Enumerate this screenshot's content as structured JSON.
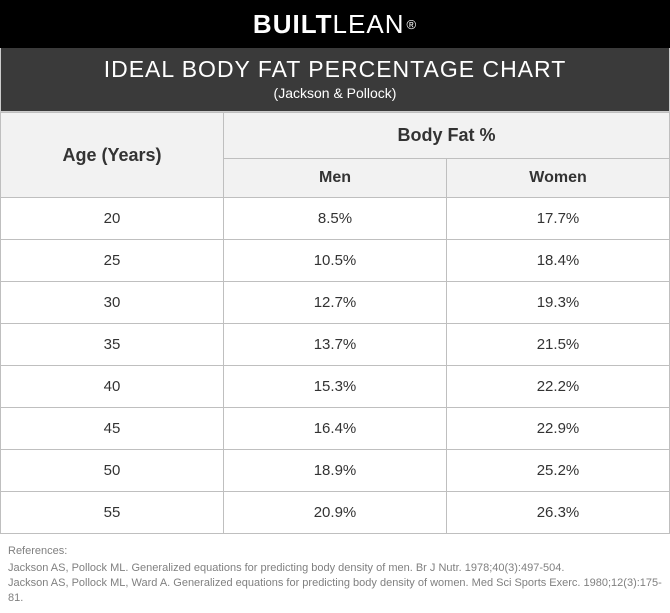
{
  "brand": {
    "bold": "BUILT",
    "light": "LEAN",
    "reg": "®"
  },
  "title": {
    "main": "IDEAL BODY FAT PERCENTAGE CHART",
    "sub": "(Jackson & Pollock)"
  },
  "table": {
    "columns": {
      "age": "Age (Years)",
      "bodyfat": "Body Fat %",
      "men": "Men",
      "women": "Women"
    },
    "rows": [
      {
        "age": "20",
        "men": "8.5%",
        "women": "17.7%"
      },
      {
        "age": "25",
        "men": "10.5%",
        "women": "18.4%"
      },
      {
        "age": "30",
        "men": "12.7%",
        "women": "19.3%"
      },
      {
        "age": "35",
        "men": "13.7%",
        "women": "21.5%"
      },
      {
        "age": "40",
        "men": "15.3%",
        "women": "22.2%"
      },
      {
        "age": "45",
        "men": "16.4%",
        "women": "22.9%"
      },
      {
        "age": "50",
        "men": "18.9%",
        "women": "25.2%"
      },
      {
        "age": "55",
        "men": "20.9%",
        "women": "26.3%"
      }
    ]
  },
  "references": {
    "heading": "References:",
    "lines": [
      "Jackson AS, Pollock ML. Generalized equations for predicting body density of men. Br J Nutr. 1978;40(3):497-504.",
      "Jackson AS, Pollock ML, Ward A. Generalized equations for predicting body density of women. Med Sci Sports Exerc. 1980;12(3):175-81."
    ]
  },
  "style": {
    "header_bg": "#f2f2f2",
    "border_color": "#bfbfbf",
    "logo_bg": "#000000",
    "title_bg": "#3a3a3a",
    "text_color": "#333333",
    "ref_color": "#808080",
    "body_font_size": 15,
    "header_font_size": 18
  }
}
